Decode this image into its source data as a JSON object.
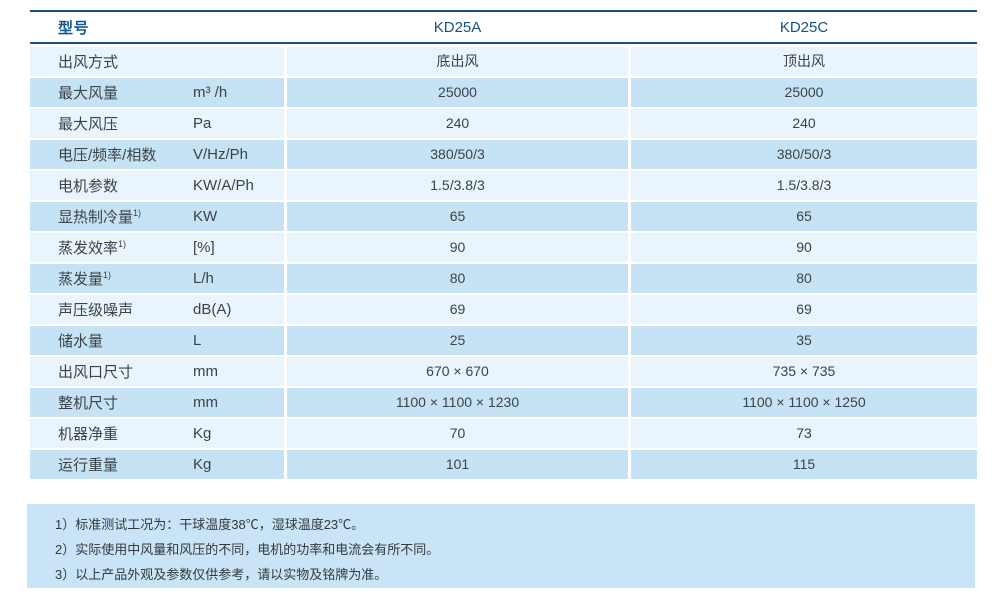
{
  "table": {
    "header": {
      "model_label": "型号",
      "columns": [
        "KD25A",
        "KD25C"
      ]
    },
    "rows": [
      {
        "label": "出风方式",
        "sup": "",
        "unit": "",
        "kd25a": "底出风",
        "kd25c": "顶出风"
      },
      {
        "label": "最大风量",
        "sup": "",
        "unit": "m³ /h",
        "kd25a": "25000",
        "kd25c": "25000"
      },
      {
        "label": "最大风压",
        "sup": "",
        "unit": "Pa",
        "kd25a": "240",
        "kd25c": "240"
      },
      {
        "label": "电压/频率/相数",
        "sup": "",
        "unit": "V/Hz/Ph",
        "kd25a": "380/50/3",
        "kd25c": "380/50/3"
      },
      {
        "label": "电机参数",
        "sup": "",
        "unit": "KW/A/Ph",
        "kd25a": "1.5/3.8/3",
        "kd25c": "1.5/3.8/3"
      },
      {
        "label": "显热制冷量",
        "sup": "1)",
        "unit": "KW",
        "kd25a": "65",
        "kd25c": "65"
      },
      {
        "label": "蒸发效率",
        "sup": "1)",
        "unit": "[%]",
        "kd25a": "90",
        "kd25c": "90"
      },
      {
        "label": "蒸发量",
        "sup": "1)",
        "unit": "L/h",
        "kd25a": "80",
        "kd25c": "80"
      },
      {
        "label": "声压级噪声",
        "sup": "",
        "unit": "dB(A)",
        "kd25a": "69",
        "kd25c": "69"
      },
      {
        "label": "储水量",
        "sup": "",
        "unit": "L",
        "kd25a": "25",
        "kd25c": "35"
      },
      {
        "label": "出风口尺寸",
        "sup": "",
        "unit": "mm",
        "kd25a": "670 × 670",
        "kd25c": "735 × 735"
      },
      {
        "label": "整机尺寸",
        "sup": "",
        "unit": "mm",
        "kd25a": "1100 × 1100 × 1230",
        "kd25c": "1100 × 1100 × 1250"
      },
      {
        "label": "机器净重",
        "sup": "",
        "unit": "Kg",
        "kd25a": "70",
        "kd25c": "73"
      },
      {
        "label": "运行重量",
        "sup": "",
        "unit": "Kg",
        "kd25a": "101",
        "kd25c": "115"
      }
    ]
  },
  "notes": [
    "1）标准测试工况为：干球温度38℃，湿球温度23℃。",
    "2）实际使用中风量和风压的不同，电机的功率和电流会有所不同。",
    "3）以上产品外观及参数仅供参考，请以实物及铭牌为准。"
  ],
  "colors": {
    "rule_navy": "#1a527e",
    "header_text_blue": "#16517f",
    "row_light": "#e9f4fc",
    "row_dark": "#c6e3f5",
    "notes_bg": "#c8e4f6",
    "body_text": "#3c4347"
  }
}
